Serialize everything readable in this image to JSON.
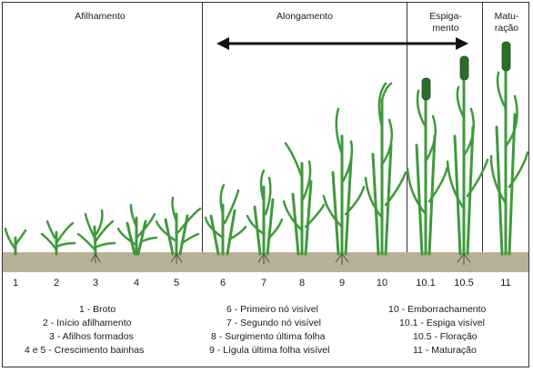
{
  "phases": [
    {
      "title": "Afilhamento"
    },
    {
      "title": "Alongamento"
    },
    {
      "title": "Espiga-\nmento"
    },
    {
      "title": "Matu-\nração"
    }
  ],
  "stages": [
    "1",
    "2",
    "3",
    "4",
    "5",
    "6",
    "7",
    "8",
    "9",
    "10",
    "10.1",
    "10.5",
    "11"
  ],
  "legend": {
    "col1": [
      "1 - Broto",
      "2 - Início afilhamento",
      "3 - Afilhos formados",
      "4 e 5 - Crescimento bainhas"
    ],
    "col2": [
      "6 - Primeiro nó visível",
      "7 - Segundo nó visível",
      "8 - Surgimento última folha",
      "9 - Lígula última folha visível"
    ],
    "col3": [
      "10 - Emborrachamento",
      "10.1 - Espiga visível",
      "10.5 - Floração",
      "11 - Maturação"
    ]
  },
  "colors": {
    "plant": "#3f9a3a",
    "plant_dark": "#2b6e2a",
    "soil": "#b8b096",
    "arrow": "#111111"
  }
}
